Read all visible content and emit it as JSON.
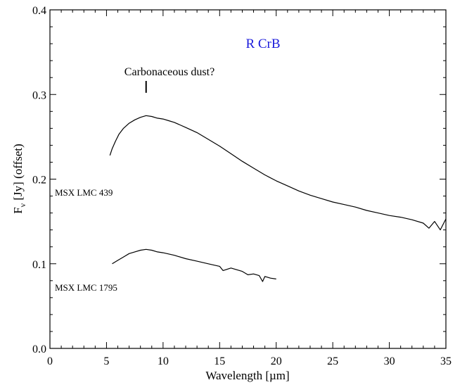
{
  "chart_data": {
    "type": "line",
    "title": "R CrB",
    "title_color": "#1a1adb",
    "xlabel": "Wavelength [µm]",
    "ylabel_main": "F",
    "ylabel_sub": "ν",
    "ylabel_rest": " [Jy] (offset)",
    "xlim": [
      0,
      35
    ],
    "ylim": [
      0,
      0.4
    ],
    "x_ticks": [
      0,
      5,
      10,
      15,
      20,
      25,
      30,
      35
    ],
    "x_tick_labels": [
      "0",
      "5",
      "10",
      "15",
      "20",
      "25",
      "30",
      "35"
    ],
    "y_ticks": [
      0.0,
      0.1,
      0.2,
      0.3,
      0.4
    ],
    "y_tick_labels": [
      "0.0",
      "0.1",
      "0.2",
      "0.3",
      "0.4"
    ],
    "annotation": {
      "text": "Carbonaceous dust?",
      "x": 8.5,
      "y_bottom": 0.302,
      "y_top": 0.316
    },
    "series": [
      {
        "name": "MSX LMC 439",
        "x": [
          5.3,
          5.5,
          5.8,
          6.1,
          6.5,
          7.0,
          7.5,
          8.0,
          8.5,
          9.0,
          9.5,
          10.0,
          10.5,
          11.0,
          11.5,
          12.0,
          13.0,
          14.0,
          15.0,
          16.0,
          17.0,
          18.0,
          19.0,
          20.0,
          21.0,
          22.0,
          23.0,
          24.0,
          25.0,
          26.0,
          27.0,
          28.0,
          29.0,
          30.0,
          31.0,
          32.0,
          33.0,
          33.5,
          34.0,
          34.5,
          35.0
        ],
        "y": [
          0.228,
          0.236,
          0.245,
          0.253,
          0.26,
          0.266,
          0.27,
          0.273,
          0.275,
          0.274,
          0.272,
          0.271,
          0.269,
          0.267,
          0.264,
          0.261,
          0.255,
          0.247,
          0.239,
          0.23,
          0.221,
          0.213,
          0.205,
          0.198,
          0.192,
          0.186,
          0.181,
          0.177,
          0.173,
          0.17,
          0.167,
          0.163,
          0.16,
          0.157,
          0.155,
          0.152,
          0.148,
          0.142,
          0.15,
          0.14,
          0.153
        ]
      },
      {
        "name": "MSX LMC 1795",
        "x": [
          5.5,
          6.0,
          6.5,
          7.0,
          7.5,
          8.0,
          8.5,
          9.0,
          9.5,
          10.0,
          11.0,
          12.0,
          13.0,
          14.0,
          15.0,
          15.3,
          16.0,
          17.0,
          17.5,
          18.0,
          18.5,
          18.8,
          19.0,
          19.5,
          20.0
        ],
        "y": [
          0.1,
          0.104,
          0.108,
          0.112,
          0.114,
          0.116,
          0.117,
          0.116,
          0.114,
          0.113,
          0.11,
          0.106,
          0.103,
          0.1,
          0.097,
          0.092,
          0.095,
          0.091,
          0.087,
          0.088,
          0.086,
          0.079,
          0.085,
          0.083,
          0.082
        ]
      }
    ]
  }
}
